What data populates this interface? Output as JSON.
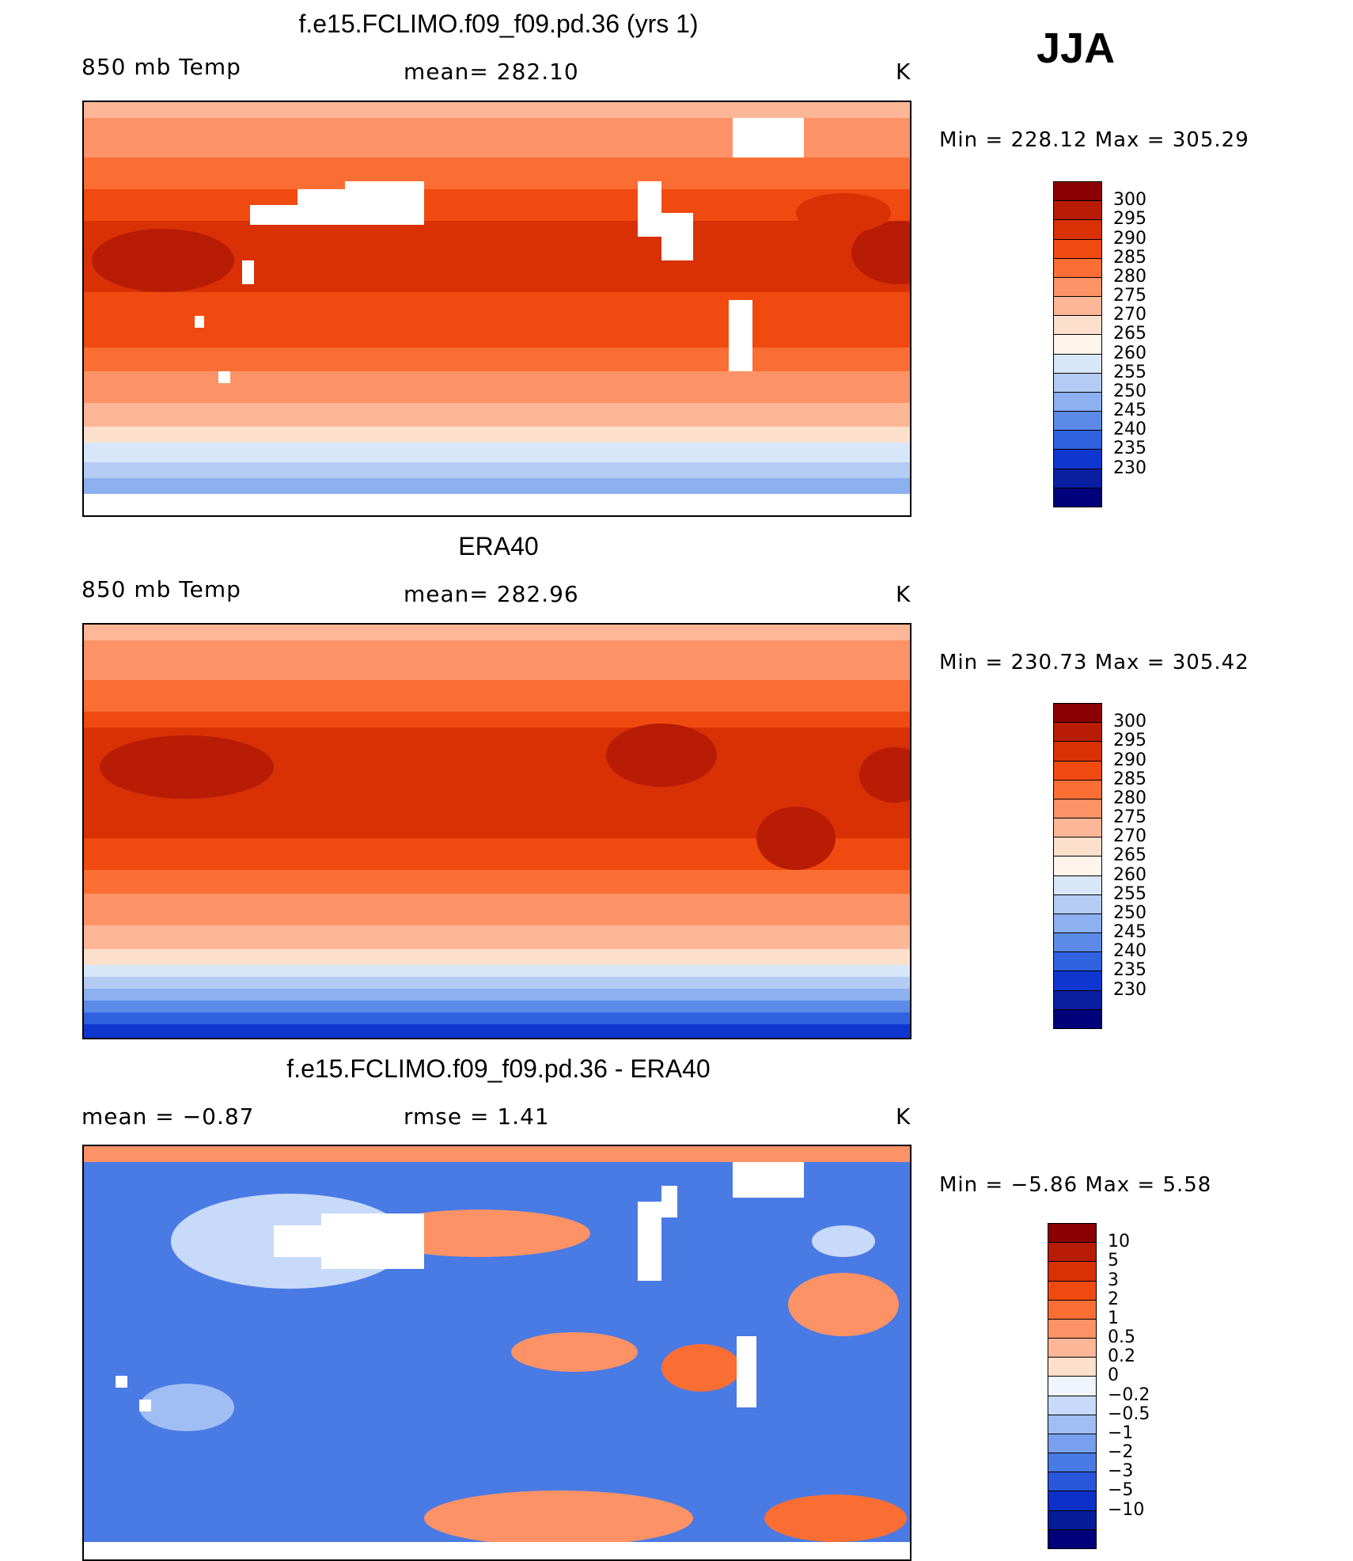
{
  "season": "JJA",
  "panels": [
    {
      "title": "f.e15.FCLIMO.f09_f09.pd.36 (yrs 1)",
      "left_label": "850 mb Temp",
      "center_label": "mean=  282.10",
      "units": "K",
      "minmax": "Min  =  228.12  Max  =  305.29",
      "type": "model"
    },
    {
      "title": "ERA40",
      "left_label": "850 mb Temp",
      "center_label": "mean=  282.96",
      "units": "K",
      "minmax": "Min  =  230.73  Max  =  305.42",
      "type": "obs"
    },
    {
      "title": "f.e15.FCLIMO.f09_f09.pd.36 - ERA40",
      "left_label": "mean  =    −0.87",
      "center_label": "rmse  =     1.41",
      "units": "K",
      "minmax": "Min  =    −5.86  Max  =      5.58",
      "type": "diff"
    }
  ],
  "temp_colorbar": {
    "labels": [
      "300",
      "295",
      "290",
      "285",
      "280",
      "275",
      "270",
      "265",
      "260",
      "255",
      "250",
      "245",
      "240",
      "235",
      "230"
    ],
    "colors": [
      "#8b0000",
      "#b81c04",
      "#d93006",
      "#f04a10",
      "#fa6e34",
      "#fc9266",
      "#fdb797",
      "#fde0cc",
      "#fff3ea",
      "#d8e6fa",
      "#b4ccf4",
      "#8cb0f0",
      "#5c8ae8",
      "#3062e0",
      "#1036d0",
      "#0a1ea0",
      "#00007a"
    ]
  },
  "diff_colorbar": {
    "labels": [
      "10",
      "5",
      "3",
      "2",
      "1",
      "0.5",
      "0.2",
      "0",
      "−0.2",
      "−0.5",
      "−1",
      "−2",
      "−3",
      "−5",
      "−10"
    ],
    "colors": [
      "#8b0000",
      "#b81c04",
      "#d93006",
      "#f04a10",
      "#fa6e34",
      "#fc9266",
      "#fdb797",
      "#fde0cc",
      "#f0f4fc",
      "#c8dafa",
      "#a0bef4",
      "#78a0ee",
      "#4a7ae4",
      "#2a56dc",
      "#0c30c8",
      "#061c98",
      "#00007a"
    ]
  }
}
